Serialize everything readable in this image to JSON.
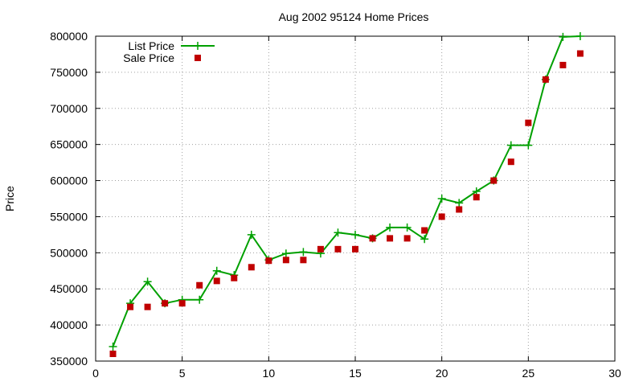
{
  "chart_data": {
    "type": "line",
    "title": "Aug 2002 95124 Home Prices",
    "xlabel": "",
    "ylabel": "Price",
    "xlim": [
      0,
      30
    ],
    "ylim": [
      350000,
      800000
    ],
    "xticks": [
      0,
      5,
      10,
      15,
      20,
      25,
      30
    ],
    "yticks": [
      350000,
      400000,
      450000,
      500000,
      550000,
      600000,
      650000,
      700000,
      750000,
      800000
    ],
    "grid": true,
    "legend_position": "top-left",
    "series": [
      {
        "name": "List Price",
        "style": "line-with-plus-markers",
        "color": "#00a000",
        "x": [
          1,
          2,
          3,
          4,
          5,
          6,
          7,
          8,
          9,
          10,
          11,
          12,
          13,
          14,
          15,
          16,
          17,
          18,
          19,
          20,
          21,
          22,
          23,
          24,
          25,
          26,
          27,
          28
        ],
        "y": [
          370000,
          430000,
          460000,
          430000,
          435000,
          435000,
          475000,
          469000,
          525000,
          490000,
          499000,
          501000,
          499000,
          528000,
          525000,
          520000,
          535000,
          535000,
          519000,
          575000,
          569000,
          585000,
          600000,
          649000,
          649000,
          740000,
          799000,
          800000
        ]
      },
      {
        "name": "Sale Price",
        "style": "square-markers",
        "color": "#c00000",
        "x": [
          1,
          2,
          3,
          4,
          5,
          6,
          7,
          8,
          9,
          10,
          11,
          12,
          13,
          14,
          15,
          16,
          17,
          18,
          19,
          20,
          21,
          22,
          23,
          24,
          25,
          26,
          27,
          28
        ],
        "y": [
          360000,
          425000,
          425000,
          430000,
          430000,
          455000,
          461000,
          465000,
          480000,
          489000,
          490000,
          490000,
          505000,
          505000,
          505000,
          520000,
          520000,
          520000,
          531000,
          550000,
          560000,
          577000,
          600000,
          626000,
          680000,
          740000,
          760000,
          776000
        ]
      }
    ]
  }
}
